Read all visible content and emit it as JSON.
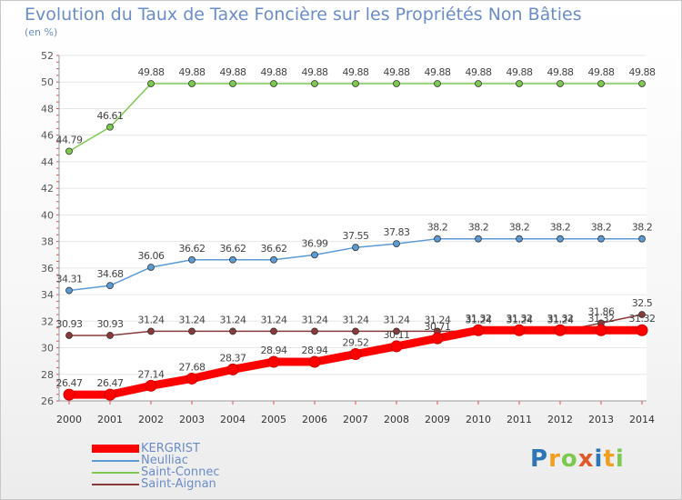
{
  "chart_data": {
    "type": "line",
    "title": "Evolution du Taux de Taxe Foncière sur les Propriétés Non Bâties",
    "ylabel": "(en %)",
    "xlabel": "",
    "ylim": [
      26,
      52
    ],
    "yticks": [
      26,
      28,
      30,
      32,
      34,
      36,
      38,
      40,
      42,
      44,
      46,
      48,
      50,
      52
    ],
    "categories": [
      "2000",
      "2001",
      "2002",
      "2003",
      "2004",
      "2005",
      "2006",
      "2007",
      "2008",
      "2009",
      "2010",
      "2011",
      "2012",
      "2013",
      "2014"
    ],
    "series": [
      {
        "name": "KERGRIST",
        "color": "#ff0000",
        "values": [
          26.47,
          26.47,
          27.14,
          27.68,
          28.37,
          28.94,
          28.94,
          29.52,
          30.11,
          30.71,
          31.32,
          31.32,
          31.32,
          31.32,
          31.32
        ],
        "labels": [
          "26.47",
          "26.47",
          "27.14",
          "27.68",
          "28.37",
          "28.94",
          "28.94",
          "29.52",
          "30.11",
          "30.71",
          "31.32",
          "31.32",
          "31.32",
          "31.32",
          "31.32"
        ]
      },
      {
        "name": "Neulliac",
        "color": "#5b9bd5",
        "values": [
          34.31,
          34.68,
          36.06,
          36.62,
          36.62,
          36.62,
          36.99,
          37.55,
          37.83,
          38.2,
          38.2,
          38.2,
          38.2,
          38.2,
          38.2
        ],
        "labels": [
          "34.31",
          "34.68",
          "36.06",
          "36.62",
          "36.62",
          "36.62",
          "36.99",
          "37.55",
          "37.83",
          "38.2",
          "38.2",
          "38.2",
          "38.2",
          "38.2",
          "38.2"
        ]
      },
      {
        "name": "Saint-Connec",
        "color": "#7cc950",
        "values": [
          44.79,
          46.61,
          49.88,
          49.88,
          49.88,
          49.88,
          49.88,
          49.88,
          49.88,
          49.88,
          49.88,
          49.88,
          49.88,
          49.88,
          49.88
        ],
        "labels": [
          "44.79",
          "46.61",
          "49.88",
          "49.88",
          "49.88",
          "49.88",
          "49.88",
          "49.88",
          "49.88",
          "49.88",
          "49.88",
          "49.88",
          "49.88",
          "49.88",
          "49.88"
        ]
      },
      {
        "name": "Saint-Aignan",
        "color": "#8b3a3a",
        "values": [
          30.93,
          30.93,
          31.24,
          31.24,
          31.24,
          31.24,
          31.24,
          31.24,
          31.24,
          31.24,
          31.24,
          31.24,
          31.24,
          31.86,
          32.5
        ],
        "labels": [
          "30.93",
          "30.93",
          "31.24",
          "31.24",
          "31.24",
          "31.24",
          "31.24",
          "31.24",
          "31.24",
          "31.24",
          "31.24",
          "31.24",
          "31.24",
          "31.86",
          "32.5"
        ]
      }
    ]
  },
  "legend": {
    "items": [
      {
        "label": "KERGRIST",
        "color": "#ff0000"
      },
      {
        "label": "Neulliac",
        "color": "#5b9bd5"
      },
      {
        "label": "Saint-Connec",
        "color": "#7cc950"
      },
      {
        "label": "Saint-Aignan",
        "color": "#8b3a3a"
      }
    ]
  },
  "brand": {
    "letters": [
      "P",
      "r",
      "o",
      "x",
      "i",
      "t",
      "i"
    ],
    "colors": [
      "#2e75b6",
      "#f0a020",
      "#7cc950",
      "#e05a2a",
      "#2e75b6",
      "#f0a020",
      "#7cc950"
    ]
  }
}
